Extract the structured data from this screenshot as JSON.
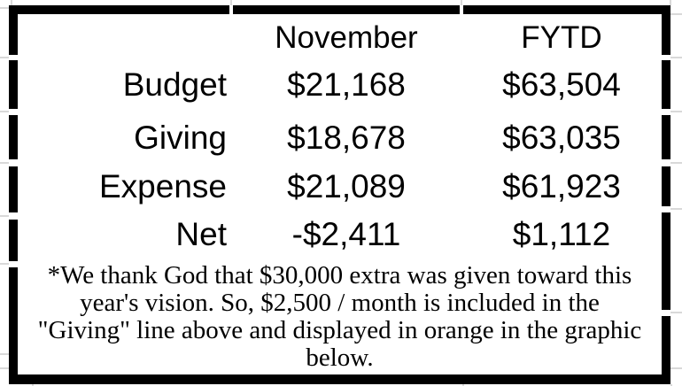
{
  "colors": {
    "background": "#ffffff",
    "border": "#000000",
    "gridline": "#d9d9d9",
    "text": "#000000"
  },
  "table": {
    "header": {
      "month_label": "November",
      "fytd_label": "FYTD"
    },
    "rows": [
      {
        "label": "Budget",
        "november": "$21,168",
        "fytd": "$63,504"
      },
      {
        "label": "Giving",
        "november": "$18,678",
        "fytd": "$63,035"
      },
      {
        "label": "Expense",
        "november": "$21,089",
        "fytd": "$61,923"
      },
      {
        "label": "Net",
        "november": "-$2,411",
        "fytd": "$1,112"
      }
    ],
    "footnote": {
      "lines": [
        "*We thank God that $30,000 extra was given toward this",
        "year's vision. So, $2,500 / month is included in the",
        "\"Giving\" line above and displayed in orange in the graphic",
        "below."
      ]
    }
  }
}
